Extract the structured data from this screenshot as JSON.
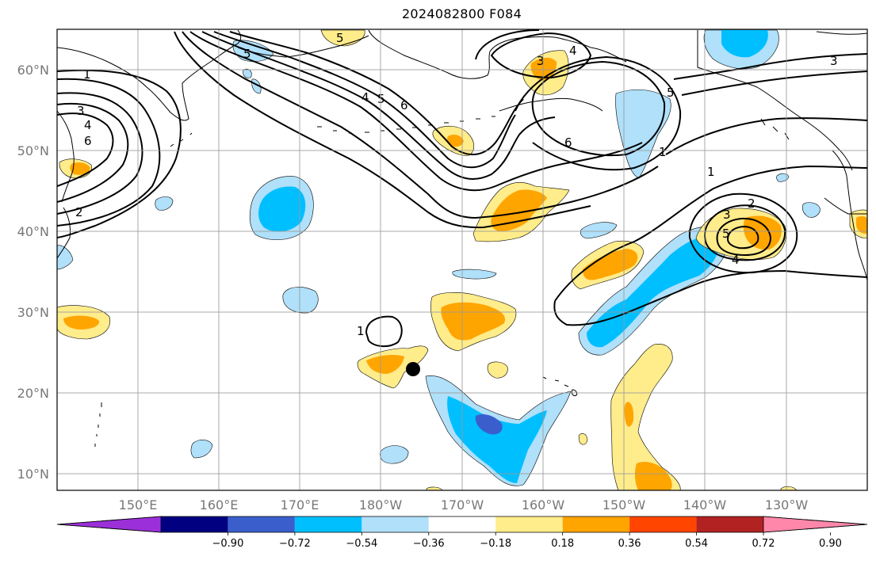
{
  "title": "2024082800 F084",
  "axes": {
    "lat_labels": [
      "60°N",
      "50°N",
      "40°N",
      "30°N",
      "20°N",
      "10°N"
    ],
    "lon_labels": [
      "150°E",
      "160°E",
      "170°E",
      "180°W",
      "170°W",
      "160°W",
      "150°W",
      "140°W",
      "130°W"
    ]
  },
  "colorbar": {
    "labels": [
      "−0.90",
      "−0.72",
      "−0.54",
      "−0.36",
      "−0.18",
      "0.18",
      "0.36",
      "0.54",
      "0.72",
      "0.90"
    ],
    "colors": [
      "#9b30d9",
      "#000080",
      "#3a5fcd",
      "#00bfff",
      "#b0e0fa",
      "#ffffff",
      "#ffec8b",
      "#ffa500",
      "#ff4500",
      "#b22222",
      "#ff88aa"
    ],
    "extend": "both"
  },
  "contour_labels": [
    "1",
    "3",
    "4",
    "6",
    "2",
    "5",
    "4",
    "5",
    "6",
    "5",
    "3",
    "4",
    "6",
    "5",
    "1",
    "3",
    "1",
    "2",
    "3",
    "5",
    "4",
    "1"
  ],
  "markers": [
    {
      "type": "filled-circle",
      "lat": 23,
      "lon": -175.5
    }
  ]
}
